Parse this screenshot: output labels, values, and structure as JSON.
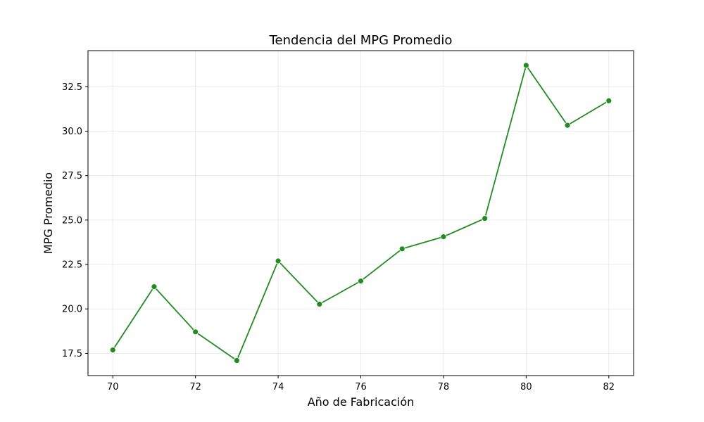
{
  "chart_data": {
    "type": "line",
    "title": "Tendencia del MPG Promedio",
    "xlabel": "Año de Fabricación",
    "ylabel": "MPG Promedio",
    "x": [
      70,
      71,
      72,
      73,
      74,
      75,
      76,
      77,
      78,
      79,
      80,
      81,
      82
    ],
    "series": [
      {
        "values": [
          17.69,
          21.25,
          18.71,
          17.1,
          22.7,
          20.27,
          21.57,
          23.38,
          24.06,
          25.09,
          33.7,
          30.33,
          31.71
        ]
      }
    ],
    "xticks": [
      70,
      72,
      74,
      76,
      78,
      80,
      82
    ],
    "yticks": [
      17.5,
      20.0,
      22.5,
      25.0,
      27.5,
      30.0,
      32.5
    ],
    "xtick_labels": [
      "70",
      "72",
      "74",
      "76",
      "78",
      "80",
      "82"
    ],
    "ytick_labels": [
      "17.5",
      "20.0",
      "22.5",
      "25.0",
      "27.5",
      "30.0",
      "32.5"
    ],
    "xlim": [
      69.4,
      82.6
    ],
    "ylim": [
      16.25,
      34.53
    ],
    "grid": true,
    "line_color": "#228b22",
    "marker": "circle"
  }
}
